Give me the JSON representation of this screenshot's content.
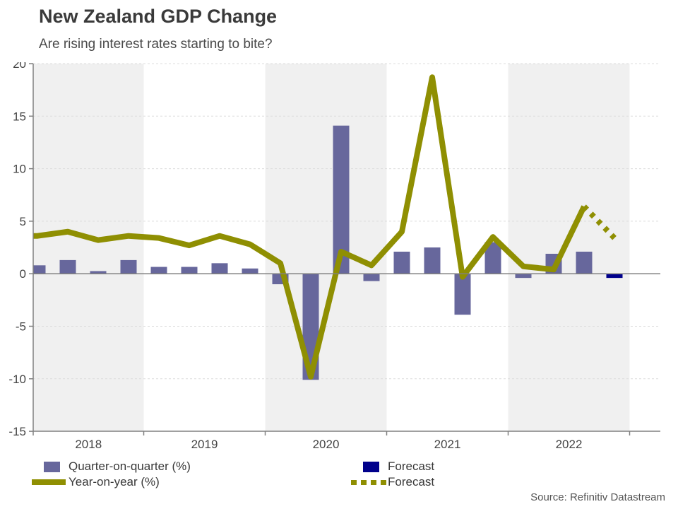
{
  "header": {
    "title": "New Zealand GDP Change",
    "subtitle": "Are rising interest rates starting to bite?"
  },
  "source": "Source: Refinitiv Datastream",
  "legend": {
    "items": [
      {
        "label": "Quarter-on-quarter (%)",
        "type": "bar",
        "color": "#67679C"
      },
      {
        "label": "Forecast",
        "type": "bar",
        "color": "#00008B"
      },
      {
        "label": "Year-on-year (%)",
        "type": "line",
        "color": "#8F8F02"
      },
      {
        "label": "Forecast",
        "type": "dotted-line",
        "color": "#8F8F02"
      }
    ]
  },
  "chart_data": {
    "type": "bar",
    "title": "New Zealand GDP Change",
    "subtitle": "Are rising interest rates starting to bite?",
    "x": [
      "2018Q1",
      "2018Q2",
      "2018Q3",
      "2018Q4",
      "2019Q1",
      "2019Q2",
      "2019Q3",
      "2019Q4",
      "2020Q1",
      "2020Q2",
      "2020Q3",
      "2020Q4",
      "2021Q1",
      "2021Q2",
      "2021Q3",
      "2021Q4",
      "2022Q1",
      "2022Q2",
      "2022Q3",
      "2022Q4"
    ],
    "xticklabels": [
      "2018",
      "2019",
      "2020",
      "2021",
      "2022"
    ],
    "yticks": [
      20,
      15,
      10,
      5,
      0,
      -5,
      -10,
      -15
    ],
    "ylim": [
      -15,
      20
    ],
    "grid": "dashed horizontal",
    "legend_position": "bottom",
    "series": [
      {
        "name": "Quarter-on-quarter (%)",
        "type": "bar",
        "color": "#67679C",
        "values": [
          0.8,
          1.3,
          0.25,
          1.3,
          0.65,
          0.65,
          1.0,
          0.5,
          -1.0,
          -10.1,
          14.1,
          -0.7,
          2.1,
          2.5,
          -3.9,
          3.0,
          -0.4,
          1.9,
          2.1,
          null
        ]
      },
      {
        "name": "Forecast (quarter-on-quarter)",
        "type": "bar",
        "color": "#00008B",
        "values": [
          null,
          null,
          null,
          null,
          null,
          null,
          null,
          null,
          null,
          null,
          null,
          null,
          null,
          null,
          null,
          null,
          null,
          null,
          null,
          -0.4
        ]
      },
      {
        "name": "Year-on-year (%)",
        "type": "line",
        "color": "#8F8F02",
        "values": [
          3.6,
          4.0,
          3.2,
          3.6,
          3.4,
          2.7,
          3.6,
          2.8,
          1.0,
          -9.8,
          2.1,
          0.8,
          4.0,
          18.7,
          -0.3,
          3.5,
          0.7,
          0.4,
          6.4,
          null
        ]
      },
      {
        "name": "Forecast (year-on-year)",
        "type": "dotted-line",
        "color": "#8F8F02",
        "values": [
          null,
          null,
          null,
          null,
          null,
          null,
          null,
          null,
          null,
          null,
          null,
          null,
          null,
          null,
          null,
          null,
          null,
          null,
          6.4,
          3.4
        ]
      }
    ],
    "shading": "alternate year bands (2018, 2020, 2022) light gray"
  }
}
